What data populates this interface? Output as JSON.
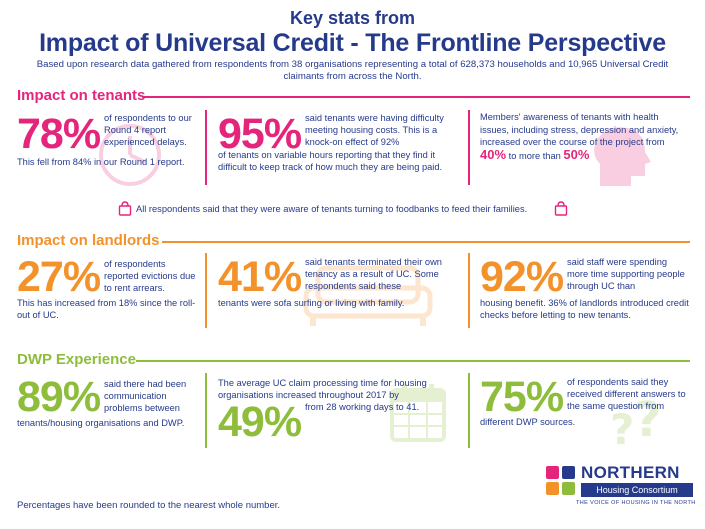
{
  "header": {
    "kicker": "Key stats from",
    "title": "Impact of Universal Credit - The Frontline Perspective",
    "intro": "Based upon research data gathered from respondents from 38 organisations representing a total of 628,373 households and 10,965 Universal Credit claimants from across the North."
  },
  "tenants": {
    "heading": "Impact on tenants",
    "stat1": {
      "value": "78%",
      "text_a": "of respondents to our Round 4 report experienced delays.",
      "text_b": "This fell from 84% in our Round 1 report."
    },
    "stat2": {
      "value": "95%",
      "text_a": "said tenants were having difficulty meeting housing costs. This is a knock-on effect of 92%",
      "text_b": "of tenants on variable hours reporting that they find it difficult to keep track of how much they are being paid."
    },
    "stat3": {
      "text_a": "Members' awareness of tenants with health issues, including stress, depression and anxiety, increased over the course of the project from",
      "from": "40%",
      "mid": "to more than",
      "to": "50%"
    },
    "foodbank": "All respondents said that they were aware of tenants turning to foodbanks to feed their families."
  },
  "landlords": {
    "heading": "Impact on landlords",
    "stat1": {
      "value": "27%",
      "text_a": "of respondents reported evictions due to rent arrears.",
      "text_b": "This has increased from 18% since the roll-out of UC."
    },
    "stat2": {
      "value": "41%",
      "text_a": "said tenants terminated their own tenancy as a result of UC. Some respondents said these",
      "text_b": "tenants were sofa surfing or living with family."
    },
    "stat3": {
      "value": "92%",
      "text_a": "said staff were spending more time supporting people through UC than",
      "text_b": "housing benefit. 36% of landlords introduced credit checks before letting to new tenants."
    }
  },
  "dwp": {
    "heading": "DWP Experience",
    "stat1": {
      "value": "89%",
      "text_a": "said there had been communication problems between",
      "text_b": "tenants/housing organisations and DWP."
    },
    "stat2": {
      "value": "49%",
      "text_a": "The average UC claim processing time for housing organisations increased throughout 2017 by",
      "text_b": "from 28 working days to 41."
    },
    "stat3": {
      "value": "75%",
      "text_a": "of respondents said they received different answers to the same question from",
      "text_b": "different DWP sources."
    }
  },
  "footer": {
    "note": "Percentages have been rounded to the nearest whole number."
  },
  "logo": {
    "name": "NORTHERN",
    "band": "Housing Consortium",
    "tagline": "THE VOICE OF HOUSING IN THE NORTH"
  },
  "colors": {
    "navy": "#263a8c",
    "pink": "#e5257b",
    "orange": "#f3922a",
    "green": "#8dbd3b"
  }
}
